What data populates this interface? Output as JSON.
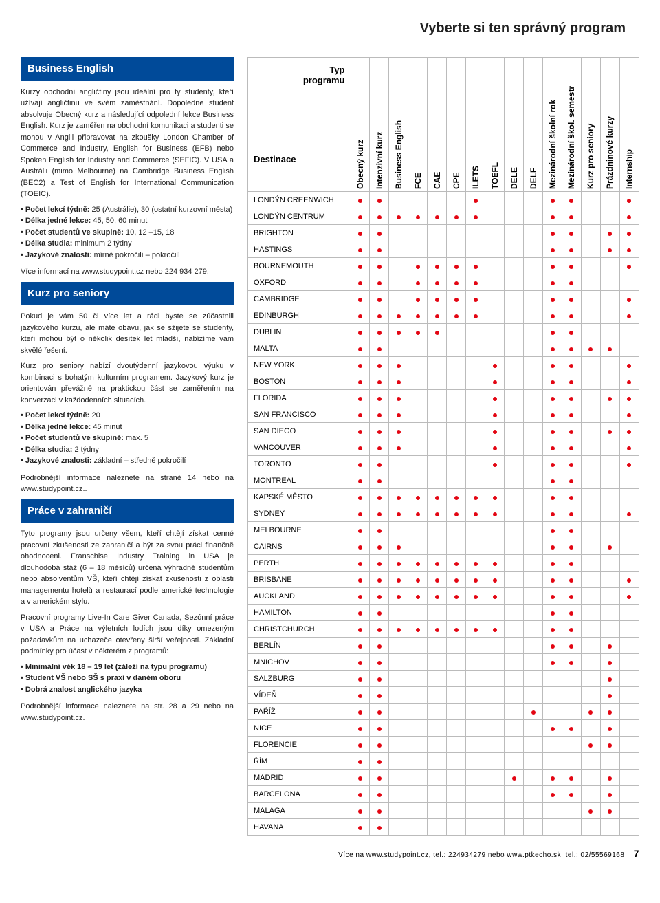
{
  "page_title": "Vyberte si ten správný program",
  "colors": {
    "accent": "#004a99",
    "dot": "#e30613",
    "border": "#bbbbbb",
    "text": "#222222"
  },
  "left": {
    "sections": [
      {
        "heading": "Business English",
        "paras": [
          "Kurzy obchodní angličtiny jsou ideální pro ty studenty, kteří užívají angličtinu ve svém zaměstnání. Dopoledne student absolvuje Obecný kurz a následující odpolední lekce Business English. Kurz je zaměřen na obchodní komunikaci a studenti se mohou v Anglii připravovat na zkoušky London Chamber of Commerce and Industry, English for Business (EFB) nebo Spoken English for Industry and Commerce (SEFIC). V USA a Austrálii (mimo Melbourne) na Cambridge Business English (BEC2) a Test of English for International Communication (TOEIC)."
        ],
        "bullets": [
          "<b>Počet lekcí týdně:</b> 25 (Austrálie), 30 (ostatní kurzovní města)",
          "<b>Délka jedné lekce:</b> 45, 50, 60 minut",
          "<b>Počet studentů ve skupině:</b> 10, 12 –15, 18",
          "<b>Délka studia:</b> minimum 2 týdny",
          "<b>Jazykové znalosti:</b> mírně pokročilí – pokročilí"
        ],
        "trail": "Více informací na www.studypoint.cz nebo 224 934 279."
      },
      {
        "heading": "Kurz pro seniory",
        "paras": [
          "Pokud je vám 50 či více let a rádi byste se zúčastnili jazykového kurzu, ale máte obavu, jak se sžijete se studenty, kteří mohou být o několik desítek let mladší, nabízíme vám skvělé řešení.",
          "Kurz pro seniory nabízí dvoutýdenní jazykovou výuku v kombinaci s bohatým kulturním programem. Jazykový kurz je orientován převážně na praktickou část se zaměřením na konverzaci v každodenních situacích."
        ],
        "bullets": [
          "<b>Počet lekcí týdně:</b> 20",
          "<b>Délka jedné lekce:</b> 45 minut",
          "<b>Počet studentů ve skupině:</b> max. 5",
          "<b>Délka studia:</b> 2 týdny",
          "<b>Jazykové znalosti:</b> základní – středně pokročilí"
        ],
        "trail": "Podrobnější informace naleznete na straně 14 nebo na www.studypoint.cz.."
      },
      {
        "heading": "Práce v zahraničí",
        "paras": [
          "Tyto programy jsou určeny všem, kteří chtějí získat cenné pracovní zkušenosti ze zahraničí a být za svou práci finančně ohodnoceni. Franschise Industry Training in USA je dlouhodobá stáž (6 – 18 měsíců) určená výhradně studentům nebo absolventům VŠ, kteří chtějí získat zkušenosti z oblasti managementu hotelů a restaurací podle americké technologie a v americkém stylu.",
          "Pracovní programy Live-In Care Giver Canada, Sezónní práce v USA a Práce na výletních lodích jsou díky omezeným požadavkům na uchazeče otevřeny širší veřejnosti. Základní podmínky pro účast v některém z programů:"
        ],
        "bullets": [
          "<b>Minimální věk 18 – 19 let (záleží na typu programu)</b>",
          "<b>Student VŠ nebo SŠ s praxí v daném oboru</b>",
          "<b>Dobrá znalost anglického jazyka</b>"
        ],
        "trail": "Podrobnější informace naleznete na str. 28 a 29 nebo na www.studypoint.cz."
      }
    ]
  },
  "table": {
    "corner": {
      "typ": "Typ",
      "programu": "programu",
      "dest": "Destinace"
    },
    "cols": [
      "Obecný kurz",
      "Intenzivní kurz",
      "Business English",
      "FCE",
      "CAE",
      "CPE",
      "ILETS",
      "TOEFL",
      "DELE",
      "DELF",
      "Mezinárodní školní rok",
      "Mezinárodní škol. semestr",
      "Kurz pro seniory",
      "Prázdninové kurzy",
      "Internship"
    ],
    "rows": [
      {
        "name": "LONDÝN CREENWICH",
        "d": [
          1,
          1,
          0,
          0,
          0,
          0,
          1,
          0,
          0,
          0,
          1,
          1,
          0,
          0,
          1
        ]
      },
      {
        "name": "LONDÝN CENTRUM",
        "d": [
          1,
          1,
          1,
          1,
          1,
          1,
          1,
          0,
          0,
          0,
          1,
          1,
          0,
          0,
          1
        ]
      },
      {
        "name": "BRIGHTON",
        "d": [
          1,
          1,
          0,
          0,
          0,
          0,
          0,
          0,
          0,
          0,
          1,
          1,
          0,
          1,
          1
        ]
      },
      {
        "name": "HASTINGS",
        "d": [
          1,
          1,
          0,
          0,
          0,
          0,
          0,
          0,
          0,
          0,
          1,
          1,
          0,
          1,
          1
        ]
      },
      {
        "name": "BOURNEMOUTH",
        "d": [
          1,
          1,
          0,
          1,
          1,
          1,
          1,
          0,
          0,
          0,
          1,
          1,
          0,
          0,
          1
        ]
      },
      {
        "name": "OXFORD",
        "d": [
          1,
          1,
          0,
          1,
          1,
          1,
          1,
          0,
          0,
          0,
          1,
          1,
          0,
          0,
          0
        ]
      },
      {
        "name": "CAMBRIDGE",
        "d": [
          1,
          1,
          0,
          1,
          1,
          1,
          1,
          0,
          0,
          0,
          1,
          1,
          0,
          0,
          1
        ]
      },
      {
        "name": "EDINBURGH",
        "d": [
          1,
          1,
          1,
          1,
          1,
          1,
          1,
          0,
          0,
          0,
          1,
          1,
          0,
          0,
          1
        ]
      },
      {
        "name": "DUBLIN",
        "d": [
          1,
          1,
          1,
          1,
          1,
          0,
          0,
          0,
          0,
          0,
          1,
          1,
          0,
          0,
          0
        ]
      },
      {
        "name": "MALTA",
        "d": [
          1,
          1,
          0,
          0,
          0,
          0,
          0,
          0,
          0,
          0,
          1,
          1,
          1,
          1,
          0
        ]
      },
      {
        "name": "NEW YORK",
        "d": [
          1,
          1,
          1,
          0,
          0,
          0,
          0,
          1,
          0,
          0,
          1,
          1,
          0,
          0,
          1
        ]
      },
      {
        "name": "BOSTON",
        "d": [
          1,
          1,
          1,
          0,
          0,
          0,
          0,
          1,
          0,
          0,
          1,
          1,
          0,
          0,
          1
        ]
      },
      {
        "name": "FLORIDA",
        "d": [
          1,
          1,
          1,
          0,
          0,
          0,
          0,
          1,
          0,
          0,
          1,
          1,
          0,
          1,
          1
        ]
      },
      {
        "name": "SAN FRANCISCO",
        "d": [
          1,
          1,
          1,
          0,
          0,
          0,
          0,
          1,
          0,
          0,
          1,
          1,
          0,
          0,
          1
        ]
      },
      {
        "name": "SAN DIEGO",
        "d": [
          1,
          1,
          1,
          0,
          0,
          0,
          0,
          1,
          0,
          0,
          1,
          1,
          0,
          1,
          1
        ]
      },
      {
        "name": "VANCOUVER",
        "d": [
          1,
          1,
          1,
          0,
          0,
          0,
          0,
          1,
          0,
          0,
          1,
          1,
          0,
          0,
          1
        ]
      },
      {
        "name": "TORONTO",
        "d": [
          1,
          1,
          0,
          0,
          0,
          0,
          0,
          1,
          0,
          0,
          1,
          1,
          0,
          0,
          1
        ]
      },
      {
        "name": "MONTREAL",
        "d": [
          1,
          1,
          0,
          0,
          0,
          0,
          0,
          0,
          0,
          0,
          1,
          1,
          0,
          0,
          0
        ]
      },
      {
        "name": "KAPSKÉ MĚSTO",
        "d": [
          1,
          1,
          1,
          1,
          1,
          1,
          1,
          1,
          0,
          0,
          1,
          1,
          0,
          0,
          0
        ]
      },
      {
        "name": "SYDNEY",
        "d": [
          1,
          1,
          1,
          1,
          1,
          1,
          1,
          1,
          0,
          0,
          1,
          1,
          0,
          0,
          1
        ]
      },
      {
        "name": "MELBOURNE",
        "d": [
          1,
          1,
          0,
          0,
          0,
          0,
          0,
          0,
          0,
          0,
          1,
          1,
          0,
          0,
          0
        ]
      },
      {
        "name": "CAIRNS",
        "d": [
          1,
          1,
          1,
          0,
          0,
          0,
          0,
          0,
          0,
          0,
          1,
          1,
          0,
          1,
          0
        ]
      },
      {
        "name": "PERTH",
        "d": [
          1,
          1,
          1,
          1,
          1,
          1,
          1,
          1,
          0,
          0,
          1,
          1,
          0,
          0,
          0
        ]
      },
      {
        "name": "BRISBANE",
        "d": [
          1,
          1,
          1,
          1,
          1,
          1,
          1,
          1,
          0,
          0,
          1,
          1,
          0,
          0,
          1
        ]
      },
      {
        "name": "AUCKLAND",
        "d": [
          1,
          1,
          1,
          1,
          1,
          1,
          1,
          1,
          0,
          0,
          1,
          1,
          0,
          0,
          1
        ]
      },
      {
        "name": "HAMILTON",
        "d": [
          1,
          1,
          0,
          0,
          0,
          0,
          0,
          0,
          0,
          0,
          1,
          1,
          0,
          0,
          0
        ]
      },
      {
        "name": "CHRISTCHURCH",
        "d": [
          1,
          1,
          1,
          1,
          1,
          1,
          1,
          1,
          0,
          0,
          1,
          1,
          0,
          0,
          0
        ]
      },
      {
        "name": "BERLÍN",
        "d": [
          1,
          1,
          0,
          0,
          0,
          0,
          0,
          0,
          0,
          0,
          1,
          1,
          0,
          1,
          0
        ]
      },
      {
        "name": "MNICHOV",
        "d": [
          1,
          1,
          0,
          0,
          0,
          0,
          0,
          0,
          0,
          0,
          1,
          1,
          0,
          1,
          0
        ]
      },
      {
        "name": "SALZBURG",
        "d": [
          1,
          1,
          0,
          0,
          0,
          0,
          0,
          0,
          0,
          0,
          0,
          0,
          0,
          1,
          0
        ]
      },
      {
        "name": "VÍDEŇ",
        "d": [
          1,
          1,
          0,
          0,
          0,
          0,
          0,
          0,
          0,
          0,
          0,
          0,
          0,
          1,
          0
        ]
      },
      {
        "name": "PAŘÍŽ",
        "d": [
          1,
          1,
          0,
          0,
          0,
          0,
          0,
          0,
          0,
          1,
          0,
          0,
          1,
          1,
          0
        ]
      },
      {
        "name": "NICE",
        "d": [
          1,
          1,
          0,
          0,
          0,
          0,
          0,
          0,
          0,
          0,
          1,
          1,
          0,
          1,
          0
        ]
      },
      {
        "name": "FLORENCIE",
        "d": [
          1,
          1,
          0,
          0,
          0,
          0,
          0,
          0,
          0,
          0,
          0,
          0,
          1,
          1,
          0
        ]
      },
      {
        "name": "ŘÍM",
        "d": [
          1,
          1,
          0,
          0,
          0,
          0,
          0,
          0,
          0,
          0,
          0,
          0,
          0,
          0,
          0
        ]
      },
      {
        "name": "MADRID",
        "d": [
          1,
          1,
          0,
          0,
          0,
          0,
          0,
          0,
          1,
          0,
          1,
          1,
          0,
          1,
          0
        ]
      },
      {
        "name": "BARCELONA",
        "d": [
          1,
          1,
          0,
          0,
          0,
          0,
          0,
          0,
          0,
          0,
          1,
          1,
          0,
          1,
          0
        ]
      },
      {
        "name": "MALAGA",
        "d": [
          1,
          1,
          0,
          0,
          0,
          0,
          0,
          0,
          0,
          0,
          0,
          0,
          1,
          1,
          0
        ]
      },
      {
        "name": "HAVANA",
        "d": [
          1,
          1,
          0,
          0,
          0,
          0,
          0,
          0,
          0,
          0,
          0,
          0,
          0,
          0,
          0
        ]
      }
    ]
  },
  "footer": {
    "text": "Více na www.studypoint.cz, tel.: 224934279 nebo www.ptkecho.sk, tel.: 02/55569168",
    "page_num": "7"
  }
}
